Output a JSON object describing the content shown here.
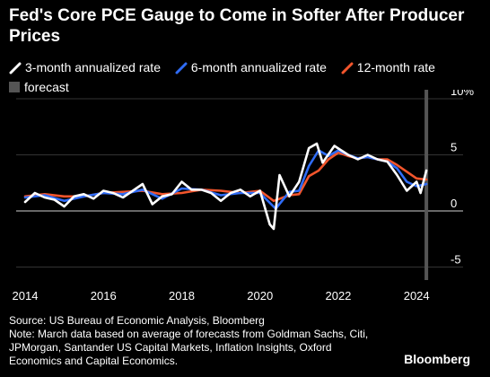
{
  "chart_data": {
    "type": "line",
    "title": "Fed's Core PCE Gauge to Come in Softer After Producer Prices",
    "legend": [
      {
        "name": "3-month annualized rate",
        "color": "#ffffff"
      },
      {
        "name": "6-month annualized rate",
        "color": "#2f6cf6"
      },
      {
        "name": "12-month rate",
        "color": "#f2552c"
      },
      {
        "name": "forecast",
        "color": "#555555"
      }
    ],
    "y_ticks": [
      "10%",
      "5",
      "0",
      "-5"
    ],
    "x_ticks": [
      "2014",
      "2016",
      "2018",
      "2020",
      "2022",
      "2024"
    ],
    "xlim": [
      2014,
      2024.5
    ],
    "ylim": [
      -6,
      10
    ],
    "forecast_x": 2024.25,
    "series": [
      {
        "name": "3-month annualized rate",
        "color": "#ffffff",
        "points": [
          [
            2014.0,
            0.8
          ],
          [
            2014.25,
            1.6
          ],
          [
            2014.5,
            1.2
          ],
          [
            2014.75,
            1.0
          ],
          [
            2015.0,
            0.4
          ],
          [
            2015.25,
            1.3
          ],
          [
            2015.5,
            1.5
          ],
          [
            2015.75,
            1.1
          ],
          [
            2016.0,
            1.8
          ],
          [
            2016.25,
            1.6
          ],
          [
            2016.5,
            1.2
          ],
          [
            2016.75,
            1.8
          ],
          [
            2017.0,
            2.4
          ],
          [
            2017.25,
            0.6
          ],
          [
            2017.5,
            1.3
          ],
          [
            2017.75,
            1.5
          ],
          [
            2018.0,
            2.6
          ],
          [
            2018.25,
            1.9
          ],
          [
            2018.5,
            1.9
          ],
          [
            2018.75,
            1.6
          ],
          [
            2019.0,
            0.9
          ],
          [
            2019.25,
            1.6
          ],
          [
            2019.5,
            1.9
          ],
          [
            2019.75,
            1.3
          ],
          [
            2020.0,
            1.8
          ],
          [
            2020.25,
            -1.2
          ],
          [
            2020.35,
            -1.6
          ],
          [
            2020.5,
            3.2
          ],
          [
            2020.75,
            1.3
          ],
          [
            2021.0,
            2.6
          ],
          [
            2021.25,
            5.6
          ],
          [
            2021.45,
            6.0
          ],
          [
            2021.6,
            4.3
          ],
          [
            2021.9,
            5.8
          ],
          [
            2022.25,
            5.0
          ],
          [
            2022.5,
            4.6
          ],
          [
            2022.75,
            5.0
          ],
          [
            2023.0,
            4.6
          ],
          [
            2023.25,
            4.4
          ],
          [
            2023.5,
            3.2
          ],
          [
            2023.75,
            1.8
          ],
          [
            2024.0,
            2.6
          ],
          [
            2024.1,
            1.6
          ],
          [
            2024.25,
            3.6
          ]
        ]
      },
      {
        "name": "6-month annualized rate",
        "color": "#2f6cf6",
        "points": [
          [
            2014.0,
            1.2
          ],
          [
            2014.5,
            1.4
          ],
          [
            2015.0,
            0.9
          ],
          [
            2015.5,
            1.3
          ],
          [
            2016.0,
            1.6
          ],
          [
            2016.5,
            1.5
          ],
          [
            2017.0,
            1.9
          ],
          [
            2017.5,
            1.1
          ],
          [
            2018.0,
            2.0
          ],
          [
            2018.5,
            1.9
          ],
          [
            2019.0,
            1.4
          ],
          [
            2019.5,
            1.6
          ],
          [
            2020.0,
            1.6
          ],
          [
            2020.4,
            0.2
          ],
          [
            2020.75,
            1.7
          ],
          [
            2021.0,
            1.8
          ],
          [
            2021.25,
            4.0
          ],
          [
            2021.5,
            5.4
          ],
          [
            2021.75,
            4.9
          ],
          [
            2022.0,
            5.4
          ],
          [
            2022.25,
            5.0
          ],
          [
            2022.5,
            4.7
          ],
          [
            2022.75,
            4.8
          ],
          [
            2023.0,
            4.6
          ],
          [
            2023.25,
            4.4
          ],
          [
            2023.5,
            3.8
          ],
          [
            2023.75,
            2.6
          ],
          [
            2024.0,
            2.2
          ],
          [
            2024.25,
            2.4
          ]
        ]
      },
      {
        "name": "12-month rate",
        "color": "#f2552c",
        "points": [
          [
            2014.0,
            1.3
          ],
          [
            2014.5,
            1.5
          ],
          [
            2015.0,
            1.3
          ],
          [
            2015.5,
            1.3
          ],
          [
            2016.0,
            1.6
          ],
          [
            2016.5,
            1.7
          ],
          [
            2017.0,
            1.8
          ],
          [
            2017.5,
            1.5
          ],
          [
            2018.0,
            1.6
          ],
          [
            2018.5,
            1.9
          ],
          [
            2019.0,
            1.8
          ],
          [
            2019.5,
            1.6
          ],
          [
            2020.0,
            1.8
          ],
          [
            2020.35,
            0.9
          ],
          [
            2020.75,
            1.4
          ],
          [
            2021.0,
            1.5
          ],
          [
            2021.25,
            3.1
          ],
          [
            2021.5,
            3.6
          ],
          [
            2021.75,
            4.6
          ],
          [
            2022.0,
            5.2
          ],
          [
            2022.25,
            4.9
          ],
          [
            2022.5,
            4.7
          ],
          [
            2022.75,
            4.8
          ],
          [
            2023.0,
            4.6
          ],
          [
            2023.25,
            4.6
          ],
          [
            2023.5,
            4.1
          ],
          [
            2023.75,
            3.5
          ],
          [
            2024.0,
            2.9
          ],
          [
            2024.25,
            2.8
          ]
        ]
      }
    ]
  },
  "footer": {
    "source": "Source: US Bureau of Economic Analysis, Bloomberg",
    "note": "Note: March data based on average of forecasts from Goldman Sachs, Citi, JPMorgan, Santander US Capital Markets, Inflation Insights, Oxford Economics and Capital Economics."
  },
  "brand": "Bloomberg"
}
